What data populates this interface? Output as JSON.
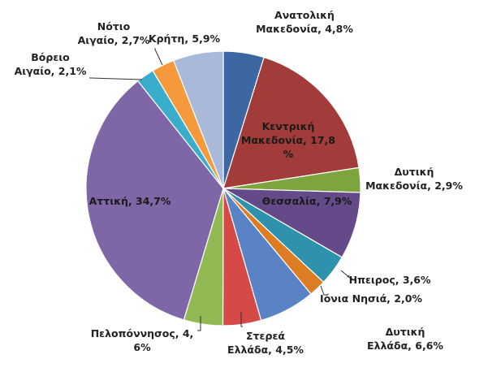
{
  "chart_data": {
    "type": "pie",
    "title": "",
    "slices": [
      {
        "label": "Ανατολική Μακεδονία",
        "value": 4.8,
        "value_label": "4,8%",
        "color": "#3d67a3"
      },
      {
        "label": "Κεντρική Μακεδονία",
        "value": 17.8,
        "value_label": "17,8 %",
        "color": "#a13c3a"
      },
      {
        "label": "Δυτική Μακεδονία",
        "value": 2.9,
        "value_label": "2,9%",
        "color": "#7ea440"
      },
      {
        "label": "Θεσσαλία",
        "value": 7.9,
        "value_label": "7,9%",
        "color": "#654a89"
      },
      {
        "label": "Ήπειρος",
        "value": 3.6,
        "value_label": "3,6%",
        "color": "#2e92ad"
      },
      {
        "label": "Ιόνια Νησιά",
        "value": 2.0,
        "value_label": "2,0%",
        "color": "#dc7d24"
      },
      {
        "label": "Δυτική Ελλάδα",
        "value": 6.6,
        "value_label": "6,6%",
        "color": "#5a83c5"
      },
      {
        "label": "Στερεά Ελλάδα",
        "value": 4.5,
        "value_label": "4,5%",
        "color": "#d54a46"
      },
      {
        "label": "Πελοπόννησος",
        "value": 4.6,
        "value_label": "4, 6%",
        "color": "#93b955"
      },
      {
        "label": "Αττική",
        "value": 34.7,
        "value_label": "34,7%",
        "color": "#7f66a6"
      },
      {
        "label": "Βόρειο Αιγαίο",
        "value": 2.1,
        "value_label": "2,1%",
        "color": "#3aaccc"
      },
      {
        "label": "Νότιο Αιγαίο",
        "value": 2.7,
        "value_label": "2,7%",
        "color": "#f59a3c"
      },
      {
        "label": "Κρήτη",
        "value": 5.9,
        "value_label": "5,9%",
        "color": "#a9b9da"
      }
    ]
  },
  "labels": [
    {
      "lines": [
        "Ανατολική",
        "Μακεδονία, 4,8%"
      ]
    },
    {
      "lines": [
        "Κεντρική",
        "Μακεδονία, 17,8",
        "%"
      ]
    },
    {
      "lines": [
        "Δυτική",
        "Μακεδονία, 2,9%"
      ]
    },
    {
      "lines": [
        "Θεσσαλία, 7,9%"
      ]
    },
    {
      "lines": [
        "Ήπειρος, 3,6%"
      ]
    },
    {
      "lines": [
        "Ιόνια Νησιά, 2,0%"
      ]
    },
    {
      "lines": [
        "Δυτική",
        "Ελλάδα, 6,6%"
      ]
    },
    {
      "lines": [
        "Στερεά",
        "Ελλάδα, 4,5%"
      ]
    },
    {
      "lines": [
        "Πελοπόννησος, 4,",
        "6%"
      ]
    },
    {
      "lines": [
        "Αττική, 34,7%"
      ]
    },
    {
      "lines": [
        "Βόρειο",
        "Αιγαίο, 2,1%"
      ]
    },
    {
      "lines": [
        "Νότιο",
        "Αιγαίο, 2,7%"
      ]
    },
    {
      "lines": [
        "Κρήτη, 5,9%"
      ]
    }
  ]
}
